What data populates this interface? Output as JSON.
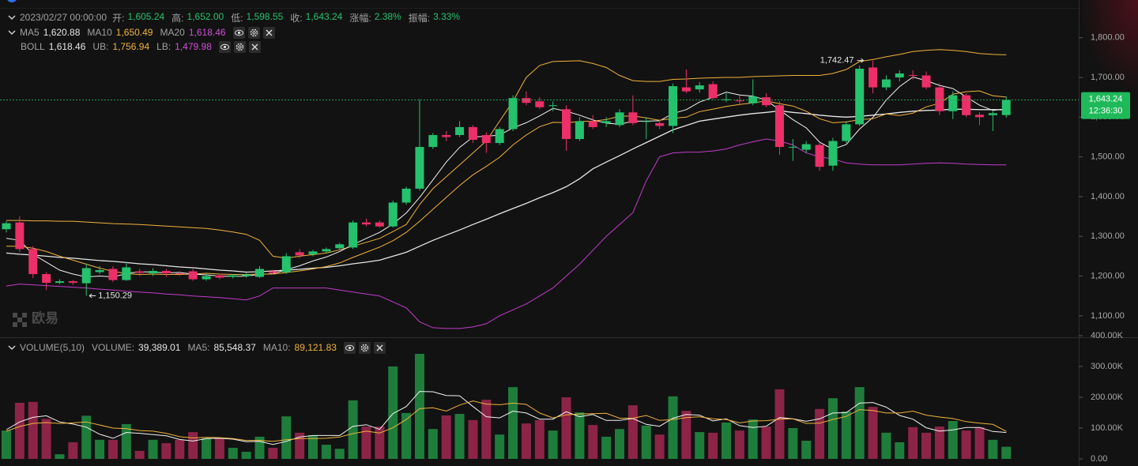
{
  "chart_data": [
    {
      "type": "candlestick",
      "time": "2023/02/27 00:00:00",
      "info": [
        {
          "label": "开:",
          "value": "1,605.24"
        },
        {
          "label": "高:",
          "value": "1,652.00"
        },
        {
          "label": "低:",
          "value": "1,598.55"
        },
        {
          "label": "收:",
          "value": "1,643.24"
        },
        {
          "label": "涨幅:",
          "value": "2.38%"
        },
        {
          "label": "振幅:",
          "value": "3.33%"
        }
      ],
      "up_color": "#25c26e",
      "down_color": "#ec2f68",
      "open": [
        1318,
        1335,
        1268,
        1205,
        1183,
        1187,
        1182,
        1210,
        1218,
        1190,
        1212,
        1207,
        1213,
        1207,
        1212,
        1192,
        1202,
        1198,
        1200,
        1198,
        1212,
        1210,
        1260,
        1255,
        1262,
        1270,
        1272,
        1335,
        1335,
        1325,
        1385,
        1420,
        1525,
        1555,
        1555,
        1575,
        1555,
        1535,
        1570,
        1648,
        1640,
        1628,
        1620,
        1545,
        1590,
        1585,
        1580,
        1612,
        1588,
        1585,
        1578,
        1675,
        1670,
        1683,
        1645,
        1642,
        1635,
        1650,
        1630,
        1525,
        1518,
        1530,
        1478,
        1540,
        1582,
        1725,
        1675,
        1700,
        1706,
        1705,
        1675,
        1615,
        1655,
        1606,
        1605,
        1605.24
      ],
      "high": [
        1338,
        1350,
        1275,
        1210,
        1192,
        1190,
        1232,
        1225,
        1225,
        1235,
        1218,
        1220,
        1218,
        1212,
        1218,
        1205,
        1206,
        1205,
        1208,
        1225,
        1216,
        1258,
        1268,
        1266,
        1272,
        1284,
        1340,
        1345,
        1340,
        1390,
        1425,
        1645,
        1560,
        1565,
        1590,
        1580,
        1562,
        1575,
        1655,
        1665,
        1650,
        1640,
        1630,
        1600,
        1605,
        1600,
        1620,
        1655,
        1600,
        1595,
        1685,
        1720,
        1688,
        1690,
        1660,
        1655,
        1695,
        1660,
        1640,
        1545,
        1540,
        1535,
        1548,
        1590,
        1730,
        1742.47,
        1705,
        1718,
        1718,
        1715,
        1685,
        1665,
        1660,
        1612,
        1615,
        1652.0
      ],
      "low": [
        1310,
        1260,
        1195,
        1165,
        1180,
        1178,
        1150.29,
        1205,
        1185,
        1188,
        1200,
        1200,
        1198,
        1200,
        1188,
        1188,
        1192,
        1194,
        1196,
        1195,
        1204,
        1205,
        1245,
        1250,
        1258,
        1266,
        1268,
        1325,
        1322,
        1322,
        1380,
        1415,
        1520,
        1540,
        1550,
        1535,
        1510,
        1530,
        1565,
        1630,
        1620,
        1615,
        1515,
        1540,
        1570,
        1575,
        1575,
        1580,
        1545,
        1570,
        1560,
        1660,
        1662,
        1645,
        1638,
        1630,
        1630,
        1625,
        1505,
        1490,
        1510,
        1465,
        1465,
        1535,
        1578,
        1660,
        1668,
        1690,
        1695,
        1670,
        1605,
        1595,
        1600,
        1580,
        1565,
        1598.55
      ],
      "close": [
        1333,
        1268,
        1205,
        1183,
        1187,
        1183,
        1220,
        1215,
        1190,
        1222,
        1208,
        1213,
        1207,
        1205,
        1192,
        1200,
        1196,
        1202,
        1204,
        1218,
        1208,
        1250,
        1252,
        1262,
        1268,
        1280,
        1335,
        1330,
        1325,
        1385,
        1420,
        1525,
        1555,
        1550,
        1575,
        1543,
        1535,
        1570,
        1648,
        1636,
        1625,
        1630,
        1545,
        1590,
        1575,
        1590,
        1612,
        1585,
        1590,
        1578,
        1678,
        1665,
        1680,
        1648,
        1645,
        1640,
        1652,
        1630,
        1525,
        1525,
        1532,
        1475,
        1540,
        1582,
        1722,
        1675,
        1695,
        1710,
        1705,
        1675,
        1615,
        1655,
        1605,
        1600,
        1610,
        1643.24
      ],
      "series": [
        {
          "name": "MA5",
          "label": "1,620.88",
          "color": "#f2f2f2",
          "values": [
            1295,
            1290,
            1255,
            1235,
            1215,
            1205,
            1198,
            1200,
            1198,
            1206,
            1211,
            1210,
            1208,
            1209,
            1205,
            1203,
            1200,
            1199,
            1200,
            1204,
            1206,
            1216,
            1226,
            1238,
            1248,
            1262,
            1279,
            1295,
            1310,
            1331,
            1359,
            1398,
            1442,
            1487,
            1524,
            1550,
            1552,
            1555,
            1573,
            1586,
            1603,
            1622,
            1615,
            1605,
            1593,
            1585,
            1582,
            1590,
            1590,
            1591,
            1609,
            1619,
            1638,
            1650,
            1663,
            1656,
            1653,
            1643,
            1618,
            1594,
            1573,
            1537,
            1519,
            1531,
            1570,
            1599,
            1643,
            1677,
            1701,
            1692,
            1680,
            1672,
            1651,
            1630,
            1617,
            1620.88
          ]
        },
        {
          "name": "MA10",
          "label": "1,650.49",
          "color": "#f0b23c",
          "values": [
            1275,
            1275,
            1270,
            1262,
            1250,
            1240,
            1230,
            1220,
            1212,
            1206,
            1204,
            1205,
            1204,
            1204,
            1205,
            1207,
            1205,
            1204,
            1204,
            1205,
            1205,
            1209,
            1213,
            1218,
            1224,
            1233,
            1247,
            1260,
            1273,
            1289,
            1310,
            1338,
            1368,
            1398,
            1428,
            1455,
            1476,
            1499,
            1530,
            1555,
            1576,
            1587,
            1586,
            1589,
            1590,
            1594,
            1602,
            1603,
            1598,
            1592,
            1597,
            1600,
            1614,
            1620,
            1627,
            1632,
            1636,
            1641,
            1634,
            1628,
            1615,
            1596,
            1586,
            1588,
            1594,
            1596,
            1608,
            1604,
            1610,
            1626,
            1635,
            1658,
            1664,
            1666,
            1654,
            1650.49
          ]
        },
        {
          "name": "MA20",
          "label": "1,618.46",
          "color": "#d04fd8"
        }
      ],
      "bands": [
        {
          "name": "BOLL",
          "label": "1,618.46",
          "color": "#e6e6e6",
          "values": [
            1258,
            1255,
            1253,
            1250,
            1247,
            1245,
            1242,
            1239,
            1237,
            1234,
            1231,
            1229,
            1226,
            1223,
            1221,
            1218,
            1215,
            1213,
            1210,
            1211,
            1213,
            1215,
            1217,
            1220,
            1222,
            1226,
            1231,
            1235,
            1240,
            1250,
            1260,
            1275,
            1290,
            1303,
            1316,
            1330,
            1343,
            1357,
            1370,
            1383,
            1397,
            1410,
            1425,
            1445,
            1470,
            1487,
            1503,
            1520,
            1536,
            1552,
            1568,
            1579,
            1590,
            1595,
            1600,
            1605,
            1609,
            1612,
            1616,
            1612,
            1609,
            1605,
            1602,
            1600,
            1602,
            1605,
            1608,
            1612,
            1615,
            1617,
            1618,
            1620,
            1620,
            1619,
            1619,
            1618.46
          ]
        },
        {
          "name": "UB:",
          "label": "1,756.94",
          "color": "#f0b23c",
          "values": [
            1340,
            1340,
            1339,
            1339,
            1338,
            1338,
            1336,
            1334,
            1332,
            1331,
            1330,
            1328,
            1326,
            1324,
            1322,
            1320,
            1316,
            1311,
            1305,
            1290,
            1250,
            1245,
            1250,
            1254,
            1258,
            1266,
            1275,
            1285,
            1295,
            1312,
            1330,
            1380,
            1420,
            1450,
            1480,
            1510,
            1540,
            1590,
            1640,
            1700,
            1730,
            1740,
            1741,
            1742,
            1735,
            1725,
            1705,
            1692,
            1690,
            1690,
            1695,
            1696,
            1698,
            1699,
            1700,
            1700,
            1702,
            1703,
            1704,
            1705,
            1705,
            1705,
            1710,
            1720,
            1740,
            1745,
            1752,
            1758,
            1765,
            1768,
            1770,
            1768,
            1765,
            1760,
            1758,
            1756.94
          ]
        },
        {
          "name": "LB:",
          "label": "1,479.98",
          "color": "#c23ccb",
          "values": [
            1175,
            1180,
            1178,
            1176,
            1174,
            1172,
            1170,
            1167,
            1165,
            1162,
            1160,
            1158,
            1155,
            1153,
            1150,
            1148,
            1146,
            1143,
            1140,
            1150,
            1170,
            1170,
            1170,
            1170,
            1170,
            1165,
            1160,
            1155,
            1150,
            1135,
            1120,
            1085,
            1070,
            1068,
            1068,
            1072,
            1080,
            1100,
            1115,
            1130,
            1150,
            1170,
            1200,
            1230,
            1265,
            1300,
            1330,
            1360,
            1440,
            1500,
            1510,
            1512,
            1512,
            1515,
            1520,
            1530,
            1538,
            1545,
            1540,
            1530,
            1510,
            1500,
            1495,
            1485,
            1482,
            1480,
            1480,
            1480,
            1482,
            1484,
            1485,
            1484,
            1482,
            1481,
            1480,
            1479.98
          ]
        }
      ],
      "annotations": [
        {
          "label": "1,742.47",
          "value": 1742.47
        },
        {
          "label": "1,150.29",
          "value": 1150.29
        }
      ],
      "price_tag": {
        "value": 1643.24,
        "label": "1,643.24",
        "countdown": "12:36:30",
        "color": "#1fb95a"
      },
      "watermark": "欧易",
      "ylim": [
        1050,
        1875
      ],
      "yticks": [
        {
          "value": 1100,
          "label": "1,100.00"
        },
        {
          "value": 1200,
          "label": "1,200.00"
        },
        {
          "value": 1300,
          "label": "1,300.00"
        },
        {
          "value": 1400,
          "label": "1,400.00"
        },
        {
          "value": 1500,
          "label": "1,500.00"
        },
        {
          "value": 1600,
          "label": "1,600.00"
        },
        {
          "value": 1700,
          "label": "1,700.00"
        },
        {
          "value": 1800,
          "label": "1,800.00"
        }
      ],
      "grid": false
    },
    {
      "type": "bar",
      "title": "VOLUME(5,10)",
      "name": "VOLUME:",
      "label": "39,389.01",
      "up_color": "#1f7d3c",
      "down_color": "#8c2447",
      "values": [
        92000,
        182000,
        185000,
        130000,
        15000,
        54000,
        140000,
        62000,
        62000,
        113000,
        26000,
        62000,
        51000,
        62000,
        87000,
        67000,
        67000,
        36000,
        23000,
        72000,
        36000,
        138000,
        85000,
        77000,
        46000,
        33000,
        190000,
        105000,
        105000,
        300000,
        149000,
        341000,
        97000,
        141000,
        146000,
        126000,
        192000,
        79000,
        233000,
        115000,
        126000,
        92000,
        200000,
        151000,
        110000,
        72000,
        97000,
        174000,
        108000,
        79000,
        203000,
        156000,
        87000,
        85000,
        118000,
        92000,
        128000,
        105000,
        226000,
        100000,
        59000,
        162000,
        197000,
        154000,
        233000,
        169000,
        85000,
        54000,
        103000,
        85000,
        105000,
        123000,
        92000,
        103000,
        62000,
        39389.01
      ],
      "series": [
        {
          "name": "MA5:",
          "label": "85,548.37",
          "color": "#f2f2f2",
          "values": [
            95000,
            120000,
            135000,
            140000,
            120000,
            113000,
            103000,
            80000,
            67000,
            86000,
            83000,
            79000,
            75000,
            63000,
            58000,
            66000,
            67000,
            64000,
            56000,
            57000,
            47000,
            57000,
            71000,
            76000,
            76000,
            76000,
            106000,
            111000,
            96000,
            147000,
            170000,
            219000,
            218000,
            206000,
            205000,
            170000,
            137000,
            133000,
            155000,
            149000,
            129000,
            129000,
            153000,
            137000,
            144000,
            125000,
            125000,
            131000,
            112000,
            106000,
            132000,
            144000,
            142000,
            123000,
            130000,
            108000,
            102000,
            106000,
            134000,
            130000,
            122000,
            130000,
            149000,
            150000,
            181000,
            183000,
            168000,
            141000,
            129000,
            101000,
            90000,
            94000,
            102000,
            102000,
            89000,
            85548.37
          ]
        },
        {
          "name": "MA10:",
          "label": "89,121.83",
          "color": "#f0b23c",
          "values": [
            90000,
            105000,
            115000,
            118000,
            115000,
            117000,
            120000,
            110000,
            100000,
            98000,
            92000,
            90000,
            83000,
            72000,
            68000,
            70000,
            69000,
            66000,
            60000,
            60000,
            57000,
            62000,
            66000,
            66000,
            67000,
            71000,
            82000,
            90000,
            84000,
            101000,
            128000,
            163000,
            166000,
            155000,
            175000,
            188000,
            178000,
            176000,
            181000,
            177000,
            149000,
            133000,
            143000,
            146000,
            147000,
            148000,
            132000,
            132000,
            141000,
            125000,
            128000,
            134000,
            137000,
            130000,
            128000,
            117000,
            123000,
            124000,
            129000,
            130000,
            115000,
            116000,
            128000,
            138000,
            160000,
            157000,
            149000,
            149000,
            155000,
            142000,
            136000,
            131000,
            121000,
            116000,
            112000,
            89121.83
          ]
        }
      ],
      "ylim": [
        0,
        400000
      ],
      "yticks": [
        {
          "value": 0,
          "label": "0.00"
        },
        {
          "value": 100000,
          "label": "100.00K"
        },
        {
          "value": 200000,
          "label": "200.00K"
        },
        {
          "value": 300000,
          "label": "300.00K"
        },
        {
          "value": 400000,
          "label": "400.00K"
        }
      ],
      "grid": false
    }
  ]
}
